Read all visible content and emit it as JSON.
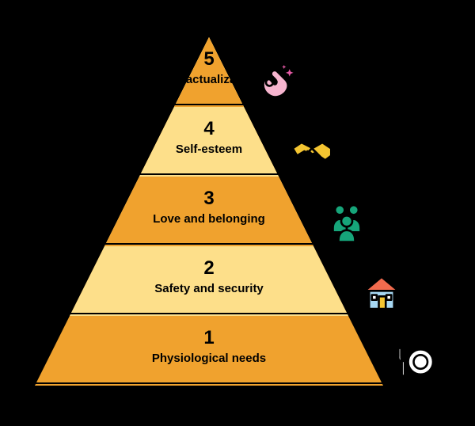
{
  "diagram": {
    "type": "pyramid",
    "background_color": "#000000",
    "number_fontsize": 24,
    "label_fontsize": 15,
    "label_fontweight": 600,
    "number_fontweight": 800,
    "text_color": "#000000",
    "separator_color": "#000000",
    "separator_width": 2,
    "icon_outline_color": "#000000",
    "levels": [
      {
        "rank": "5",
        "label": "Self-actualization",
        "fill_color": "#f0a22e",
        "icon_name": "ok-hand-icon",
        "icon_colors": {
          "hand": "#f7b5cf",
          "sparkle": "#e65aa6",
          "outline": "#000000"
        }
      },
      {
        "rank": "4",
        "label": "Self-esteem",
        "fill_color": "#fddf8a",
        "icon_name": "handshake-icon",
        "icon_colors": {
          "hands": "#f4c531",
          "outline": "#000000"
        }
      },
      {
        "rank": "3",
        "label": "Love and belonging",
        "fill_color": "#f0a22e",
        "icon_name": "people-icon",
        "icon_colors": {
          "body": "#16a57a",
          "outline": "#000000"
        }
      },
      {
        "rank": "2",
        "label": "Safety and security",
        "fill_color": "#fddf8a",
        "icon_name": "house-icon",
        "icon_colors": {
          "wall": "#a7d8f3",
          "roof": "#f26b4e",
          "door": "#f4c531",
          "outline": "#000000"
        }
      },
      {
        "rank": "1",
        "label": "Physiological needs",
        "fill_color": "#f0a22e",
        "icon_name": "plate-fork-icon",
        "icon_colors": {
          "plate": "#ffffff",
          "fork": "#ffffff",
          "outline": "#000000"
        }
      }
    ]
  }
}
